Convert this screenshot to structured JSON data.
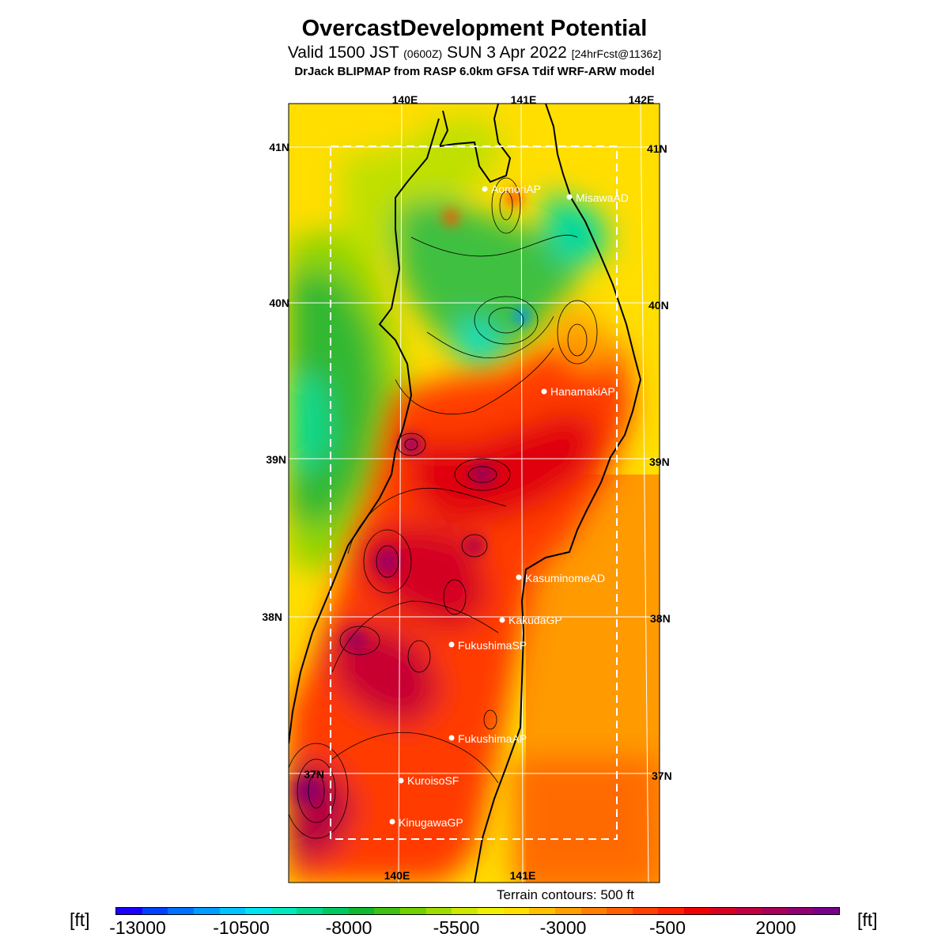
{
  "header": {
    "title": "OvercastDevelopment Potential",
    "valid_prefix": "Valid 1500 JST",
    "valid_utc": "(0600Z)",
    "valid_date": "SUN 3 Apr 2022",
    "forecast_info": "[24hrFcst@1136z]",
    "model": "DrJack BLIPMAP from RASP 6.0km GFSA Tdif WRF-ARW model"
  },
  "map": {
    "lon_top": [
      "140E",
      "141E",
      "142E"
    ],
    "lon_bottom": [
      "140E",
      "141E"
    ],
    "lat_left": [
      "41N",
      "40N",
      "39N",
      "38N",
      "37N"
    ],
    "lat_right": [
      "41N",
      "40N",
      "39N",
      "38N",
      "37N"
    ],
    "stations": [
      {
        "name": "AomoriAP"
      },
      {
        "name": "MisawaAD"
      },
      {
        "name": "HanamakiAP"
      },
      {
        "name": "KasuminomeAD"
      },
      {
        "name": "KakudaGP"
      },
      {
        "name": "FukushimaSP"
      },
      {
        "name": "FukushimaAP"
      },
      {
        "name": "KuroisoSF"
      },
      {
        "name": "KinugawaGP"
      }
    ]
  },
  "terrain_note": "Terrain contours: 500 ft",
  "colorbar": {
    "unit": "[ft]",
    "tick_labels": [
      "-13000",
      "-10500",
      "-8000",
      "-5500",
      "-3000",
      "-500",
      "2000"
    ],
    "colors": [
      "#1a00ff",
      "#0040ff",
      "#0070ff",
      "#009cff",
      "#00c4ff",
      "#00e4f0",
      "#00e8c0",
      "#00d890",
      "#00c860",
      "#10b830",
      "#40c010",
      "#70d000",
      "#a0dc00",
      "#d0e800",
      "#f0f000",
      "#ffe000",
      "#ffc000",
      "#ffa000",
      "#ff8000",
      "#ff6000",
      "#ff4000",
      "#ff2000",
      "#f00000",
      "#d80020",
      "#c00040",
      "#a80058",
      "#900070",
      "#780088"
    ]
  }
}
